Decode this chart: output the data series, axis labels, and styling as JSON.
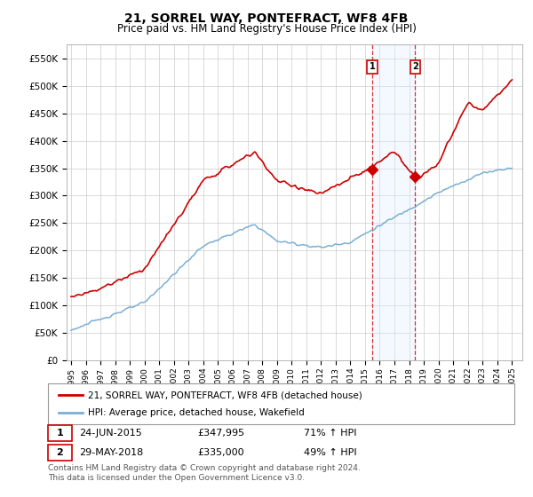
{
  "title": "21, SORREL WAY, PONTEFRACT, WF8 4FB",
  "subtitle": "Price paid vs. HM Land Registry's House Price Index (HPI)",
  "ylim": [
    0,
    575000
  ],
  "yticks": [
    0,
    50000,
    100000,
    150000,
    200000,
    250000,
    300000,
    350000,
    400000,
    450000,
    500000,
    550000
  ],
  "ytick_labels": [
    "£0",
    "£50K",
    "£100K",
    "£150K",
    "£200K",
    "£250K",
    "£300K",
    "£350K",
    "£400K",
    "£450K",
    "£500K",
    "£550K"
  ],
  "hpi_color": "#7bafd4",
  "price_color": "#cc0000",
  "shaded_color": "#ddeeff",
  "transaction1_date": "24-JUN-2015",
  "transaction1_price": 347995,
  "transaction1_price_str": "£347,995",
  "transaction1_hpi": "71%",
  "transaction1_year": 2015.48,
  "transaction1_value": 347995,
  "transaction2_date": "29-MAY-2018",
  "transaction2_price": 335000,
  "transaction2_price_str": "£335,000",
  "transaction2_hpi": "49%",
  "transaction2_year": 2018.41,
  "transaction2_value": 335000,
  "legend_label1": "21, SORREL WAY, PONTEFRACT, WF8 4FB (detached house)",
  "legend_label2": "HPI: Average price, detached house, Wakefield",
  "footnote1": "Contains HM Land Registry data © Crown copyright and database right 2024.",
  "footnote2": "This data is licensed under the Open Government Licence v3.0.",
  "background_color": "#ffffff",
  "grid_color": "#cccccc",
  "xlim_left": 1994.7,
  "xlim_right": 2025.7
}
